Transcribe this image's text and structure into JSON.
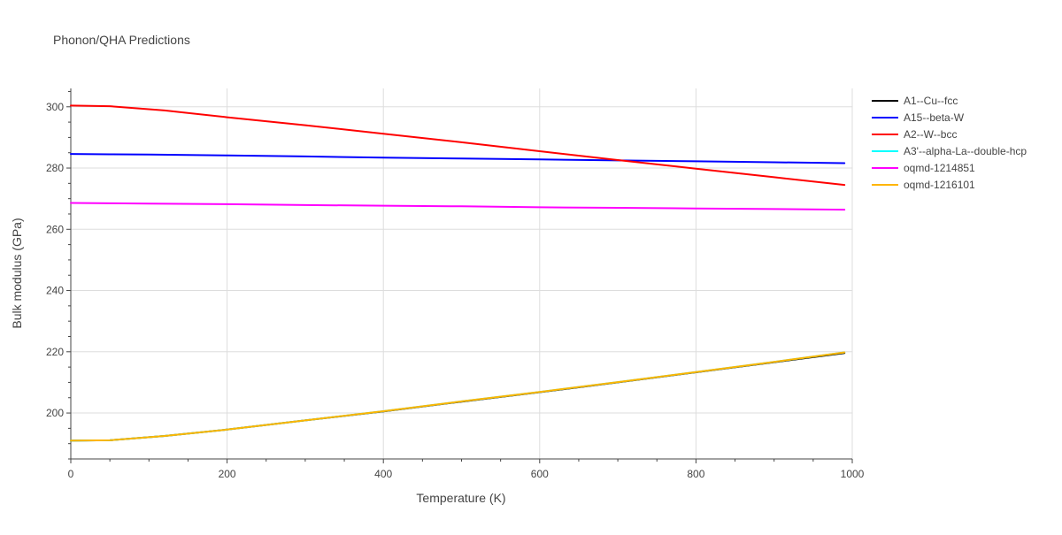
{
  "chart_data": {
    "type": "line",
    "title": "Phonon/QHA Predictions",
    "xlabel": "Temperature (K)",
    "ylabel": "Bulk modulus (GPa)",
    "xlim": [
      0,
      1000
    ],
    "ylim": [
      185,
      306
    ],
    "xticks": [
      0,
      200,
      400,
      600,
      800,
      1000
    ],
    "yticks": [
      200,
      220,
      240,
      260,
      280,
      300
    ],
    "grid": true,
    "legend_position": "right",
    "series": [
      {
        "name": "A1--Cu--fcc",
        "color": "#000000",
        "x": [
          0,
          50,
          120,
          200,
          300,
          400,
          500,
          600,
          700,
          800,
          900,
          990
        ],
        "y": [
          191.0,
          191.1,
          192.5,
          194.6,
          197.6,
          200.5,
          203.7,
          206.8,
          210.0,
          213.3,
          216.6,
          219.6
        ]
      },
      {
        "name": "A15--beta-W",
        "color": "#0000ff",
        "x": [
          0,
          50,
          100,
          200,
          300,
          400,
          500,
          600,
          700,
          800,
          900,
          990
        ],
        "y": [
          284.6,
          284.5,
          284.4,
          284.1,
          283.8,
          283.4,
          283.1,
          282.8,
          282.5,
          282.2,
          281.9,
          281.6
        ]
      },
      {
        "name": "A2--W--bcc",
        "color": "#ff0000",
        "x": [
          0,
          50,
          120,
          200,
          300,
          400,
          500,
          600,
          700,
          800,
          900,
          990
        ],
        "y": [
          300.4,
          300.2,
          298.8,
          296.6,
          294.0,
          291.2,
          288.4,
          285.5,
          282.6,
          279.8,
          277.0,
          274.5
        ]
      },
      {
        "name": "A3'--alpha-La--double-hcp",
        "color": "#00ffff",
        "x": [
          0,
          50,
          120,
          200,
          300,
          400,
          500,
          600,
          700,
          800,
          900,
          990
        ],
        "y": [
          191.0,
          191.1,
          192.5,
          194.6,
          197.6,
          200.6,
          203.8,
          206.9,
          210.1,
          213.4,
          216.7,
          219.8
        ]
      },
      {
        "name": "oqmd-1214851",
        "color": "#ff00ff",
        "x": [
          0,
          50,
          100,
          200,
          300,
          400,
          500,
          600,
          700,
          800,
          900,
          990
        ],
        "y": [
          268.6,
          268.5,
          268.4,
          268.2,
          267.9,
          267.7,
          267.5,
          267.2,
          267.0,
          266.8,
          266.6,
          266.4
        ]
      },
      {
        "name": "oqmd-1216101",
        "color": "#ffb500",
        "x": [
          0,
          50,
          120,
          200,
          300,
          400,
          500,
          600,
          700,
          800,
          900,
          990
        ],
        "y": [
          191.0,
          191.1,
          192.5,
          194.6,
          197.6,
          200.6,
          203.8,
          206.9,
          210.1,
          213.4,
          216.7,
          219.8
        ]
      }
    ]
  }
}
